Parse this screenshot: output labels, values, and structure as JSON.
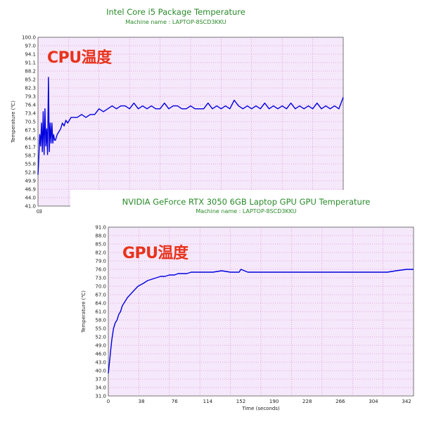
{
  "chart_data": [
    {
      "type": "line",
      "title": "Intel Core i5 Package Temperature",
      "subtitle": "Machine name : LAPTOP-8SCD3KKU",
      "overlay_label": "CPU温度",
      "ylabel": "Temperature (℃)",
      "xlabel": "",
      "ylim": [
        41.0,
        100.0
      ],
      "xlim": [
        0,
        350
      ],
      "y_ticks": [
        "100.0",
        "97.0",
        "94.1",
        "91.1",
        "88.2",
        "85.2",
        "82.3",
        "79.3",
        "76.4",
        "73.4",
        "70.5",
        "67.5",
        "64.6",
        "61.7",
        "58.7",
        "55.8",
        "52.8",
        "49.9",
        "46.9",
        "44.0",
        "41.0"
      ],
      "x_ticks": [
        "0",
        "3"
      ],
      "grid": true,
      "colors": {
        "line": "#0000e0",
        "plot_bg": "#f5e8fa",
        "grid": "#cc66cc"
      },
      "series": [
        {
          "x": [
            0,
            1,
            2,
            3,
            4,
            5,
            6,
            7,
            8,
            9,
            10,
            11,
            12,
            13,
            14,
            15,
            16,
            17,
            18,
            19,
            20,
            22,
            24,
            26,
            28,
            30,
            32,
            34,
            36,
            38,
            40,
            45,
            50,
            55,
            60,
            65,
            70,
            75,
            80,
            85,
            90,
            95,
            100,
            105,
            110,
            115,
            120,
            125,
            130,
            135,
            140,
            145,
            150,
            155,
            160,
            165,
            170,
            175,
            180,
            185,
            190,
            195,
            200,
            205,
            210,
            215,
            220,
            225,
            230,
            235,
            240,
            245,
            250,
            255,
            260,
            265,
            270,
            275,
            280,
            285,
            290,
            295,
            300,
            305,
            310,
            315,
            320,
            325,
            330,
            335,
            340,
            345,
            350
          ],
          "y": [
            52,
            58,
            66,
            62,
            70,
            60,
            74,
            59,
            75,
            62,
            68,
            59,
            86,
            60,
            70,
            63,
            70,
            63,
            66,
            64,
            64,
            66,
            67,
            68,
            70,
            69,
            71,
            70,
            71,
            72,
            72,
            72,
            73,
            72,
            73,
            73,
            75,
            74,
            75,
            76,
            75,
            76,
            76,
            75,
            77,
            75,
            76,
            75,
            76,
            75,
            75,
            77,
            75,
            76,
            76,
            75,
            75,
            76,
            75,
            75,
            75,
            77,
            75,
            76,
            75,
            76,
            75,
            78,
            76,
            75,
            76,
            75,
            76,
            75,
            77,
            75,
            76,
            75,
            76,
            75,
            77,
            75,
            76,
            75,
            76,
            75,
            77,
            75,
            76,
            75,
            76,
            75,
            79
          ]
        }
      ]
    },
    {
      "type": "line",
      "title": "NVIDIA GeForce RTX 3050 6GB Laptop GPU GPU Temperature",
      "subtitle": "Machine name : LAPTOP-8SCD3KKU",
      "overlay_label": "GPU温度",
      "ylabel": "Temperature (℃)",
      "xlabel": "Time (seconds)",
      "ylim": [
        31.0,
        91.0
      ],
      "xlim": [
        0,
        350
      ],
      "y_ticks": [
        "91.0",
        "88.0",
        "85.0",
        "82.0",
        "79.0",
        "76.0",
        "73.0",
        "70.0",
        "67.0",
        "64.0",
        "61.0",
        "58.0",
        "55.0",
        "52.0",
        "49.0",
        "46.0",
        "43.0",
        "40.0",
        "37.0",
        "34.0",
        "31.0"
      ],
      "x_ticks": [
        "0",
        "38",
        "76",
        "114",
        "152",
        "190",
        "228",
        "266",
        "304",
        "342"
      ],
      "grid": true,
      "colors": {
        "line": "#0000e0",
        "plot_bg": "#f5e8fa",
        "grid": "#cc66cc"
      },
      "series": [
        {
          "x": [
            0,
            1,
            2,
            3,
            4,
            5,
            6,
            8,
            10,
            12,
            14,
            16,
            18,
            20,
            22,
            25,
            28,
            31,
            34,
            37,
            40,
            45,
            50,
            55,
            60,
            65,
            70,
            76,
            80,
            85,
            90,
            95,
            100,
            105,
            110,
            114,
            120,
            130,
            140,
            150,
            152,
            160,
            170,
            180,
            190,
            200,
            210,
            220,
            228,
            240,
            250,
            260,
            266,
            270,
            280,
            290,
            300,
            304,
            310,
            320,
            330,
            342,
            350
          ],
          "y": [
            39,
            42,
            45,
            48,
            51,
            53,
            55,
            57,
            58,
            60,
            61,
            63,
            64,
            65,
            66,
            67,
            68,
            69,
            70,
            70.5,
            71,
            72,
            72.5,
            73,
            73.5,
            73.5,
            74,
            74,
            74.5,
            74.5,
            74.5,
            75,
            75,
            75,
            75,
            75,
            75,
            75.5,
            75,
            75,
            76,
            75,
            75,
            75,
            75,
            75,
            75,
            75,
            75,
            75,
            75,
            75,
            75,
            75,
            75,
            75,
            75,
            75,
            75,
            75,
            75.5,
            76,
            76
          ]
        }
      ]
    }
  ]
}
